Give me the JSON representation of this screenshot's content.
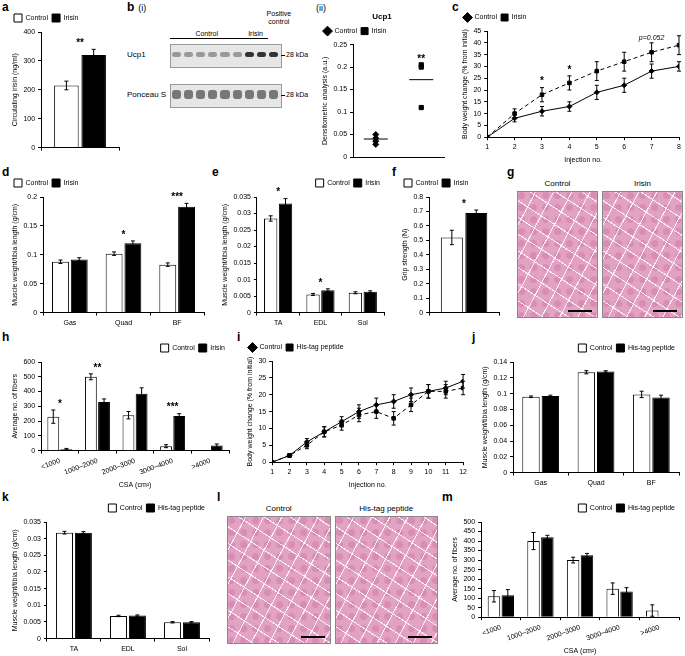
{
  "chart_data": [
    {
      "panel": "a",
      "type": "bar",
      "categories": [
        null
      ],
      "y_label": "Circulating irisin (ng/ml)",
      "ylim": [
        0,
        400
      ],
      "yticks": [
        0,
        100,
        200,
        300,
        400
      ],
      "legend": "top-left",
      "series": [
        {
          "name": "Control",
          "color": "#ffffff",
          "values": [
            215
          ],
          "errors": [
            15
          ]
        },
        {
          "name": "Irisin",
          "color": "#000000",
          "values": [
            320
          ],
          "errors": [
            20
          ]
        }
      ],
      "significance": [
        "**"
      ]
    },
    {
      "subpanel": "(ii)",
      "type": "scatter",
      "title": "Ucp1",
      "y_label": "Densitometric analysis (a.u.)",
      "ylim": [
        0,
        0.25
      ],
      "yticks": [
        0,
        0.05,
        0.1,
        0.15,
        0.2,
        0.25
      ],
      "legend": "top-left",
      "tick_labels": "y",
      "series": [
        {
          "name": "Control",
          "color": "#000000",
          "marker": "diamond",
          "values": [
            0.05,
            0.042,
            0.035,
            0.028
          ],
          "mean": 0.04
        },
        {
          "name": "Irisin",
          "color": "#000000",
          "marker": "square",
          "values": [
            0.205,
            0.2,
            0.11
          ],
          "mean": 0.172
        }
      ],
      "significance": [
        null,
        "**"
      ]
    },
    {
      "panel": "c",
      "type": "line",
      "x": [
        1,
        2,
        3,
        4,
        5,
        6,
        7,
        8
      ],
      "xlim": [
        1,
        8
      ],
      "xticks": [
        1,
        2,
        3,
        4,
        5,
        6,
        7,
        8
      ],
      "x_label": "Injection no.",
      "y_label": "Body weight change (% from initial)",
      "ylim": [
        0,
        45
      ],
      "yticks": [
        0,
        5,
        10,
        15,
        20,
        25,
        30,
        35,
        40,
        45
      ],
      "legend": "top-left",
      "series": [
        {
          "name": "Control",
          "color": "#000000",
          "marker": "diamond",
          "line_style": "solid",
          "values": [
            0,
            8,
            11,
            13,
            19,
            22,
            28,
            30
          ],
          "errors": [
            0,
            1.5,
            2,
            2,
            3,
            3,
            3,
            2
          ]
        },
        {
          "name": "Irisin",
          "color": "#000000",
          "marker": "square",
          "line_style": "dashed",
          "values": [
            0,
            10,
            18,
            23,
            28,
            32,
            36,
            39
          ],
          "errors": [
            0,
            2,
            3,
            3,
            4,
            4,
            4,
            4
          ]
        }
      ],
      "annotations": [
        {
          "x": 3,
          "text": "*"
        },
        {
          "x": 4,
          "text": "*"
        },
        {
          "x": 7,
          "text": "p=0.052"
        }
      ]
    },
    {
      "panel": "d",
      "type": "bar",
      "categories": [
        "Gas",
        "Quad",
        "BF"
      ],
      "y_label": "Muscle weight/tibia length (g/cm)",
      "ylim": [
        0,
        0.2
      ],
      "yticks": [
        0,
        0.05,
        0.1,
        0.15,
        0.2
      ],
      "legend": "top-left",
      "series": [
        {
          "name": "Control",
          "color": "#ffffff",
          "values": [
            0.088,
            0.102,
            0.083
          ],
          "errors": [
            0.003,
            0.003,
            0.003
          ]
        },
        {
          "name": "Irisin",
          "color": "#000000",
          "values": [
            0.092,
            0.12,
            0.183
          ],
          "errors": [
            0.003,
            0.004,
            0.006
          ]
        }
      ],
      "significance": [
        null,
        "*",
        "***"
      ]
    },
    {
      "panel": "e",
      "type": "bar",
      "categories": [
        "TA",
        "EDL",
        "Sol"
      ],
      "y_label": "Muscle weight/tibia length (g/cm)",
      "ylim": [
        0,
        0.035
      ],
      "yticks": [
        0,
        0.005,
        0.01,
        0.015,
        0.02,
        0.025,
        0.03,
        0.035
      ],
      "legend": "top-right",
      "series": [
        {
          "name": "Control",
          "color": "#ffffff",
          "values": [
            0.0285,
            0.0055,
            0.006
          ],
          "errors": [
            0.0008,
            0.0003,
            0.0003
          ]
        },
        {
          "name": "Irisin",
          "color": "#000000",
          "values": [
            0.033,
            0.0068,
            0.0063
          ],
          "errors": [
            0.0015,
            0.0004,
            0.0003
          ]
        }
      ],
      "significance": [
        "*",
        "*",
        null
      ]
    },
    {
      "panel": "f",
      "type": "bar",
      "categories": [
        null
      ],
      "y_label": "Grip strength (N)",
      "ylim": [
        0,
        0.8
      ],
      "yticks": [
        0,
        0.1,
        0.2,
        0.3,
        0.4,
        0.5,
        0.6,
        0.7,
        0.8
      ],
      "legend": "top-left",
      "series": [
        {
          "name": "Control",
          "color": "#ffffff",
          "values": [
            0.52
          ],
          "errors": [
            0.05
          ]
        },
        {
          "name": "Irisin",
          "color": "#000000",
          "values": [
            0.69
          ],
          "errors": [
            0.02
          ]
        }
      ],
      "significance": [
        "*"
      ]
    },
    {
      "panel": "h",
      "type": "bar",
      "categories": [
        "<1000",
        "1000–2000",
        "2000–3000",
        "3000–4000",
        ">4000"
      ],
      "x_label": "CSA (cm²)",
      "y_label": "Average no. of fibers",
      "ylim": [
        0,
        600
      ],
      "yticks": [
        0,
        100,
        200,
        300,
        400,
        500,
        600
      ],
      "legend": "top-right",
      "series": [
        {
          "name": "Control",
          "color": "#ffffff",
          "values": [
            230,
            500,
            240,
            30,
            0
          ],
          "errors": [
            45,
            20,
            25,
            10,
            0
          ]
        },
        {
          "name": "Irisin",
          "color": "#000000",
          "values": [
            10,
            330,
            385,
            235,
            35
          ],
          "errors": [
            5,
            20,
            40,
            15,
            10
          ]
        }
      ],
      "significance": [
        "*",
        "**",
        null,
        "***",
        null
      ]
    },
    {
      "panel": "i",
      "type": "line",
      "x": [
        1,
        2,
        3,
        4,
        5,
        6,
        7,
        8,
        9,
        10,
        11,
        12
      ],
      "xlim": [
        1,
        12
      ],
      "xticks": [
        1,
        2,
        3,
        4,
        5,
        6,
        7,
        8,
        9,
        10,
        11,
        12
      ],
      "x_label": "Injection no.",
      "y_label": "Body weight change (% from initial)",
      "ylim": [
        0,
        30
      ],
      "yticks": [
        0,
        5,
        10,
        15,
        20,
        25,
        30
      ],
      "legend": "top-left",
      "series": [
        {
          "name": "Control",
          "color": "#000000",
          "marker": "diamond",
          "line_style": "solid",
          "values": [
            0,
            2,
            6,
            9,
            12,
            15,
            17,
            18,
            20,
            21,
            22,
            24
          ],
          "errors": [
            0,
            0.5,
            1,
            1.5,
            1.5,
            2,
            2,
            2,
            2,
            2,
            2,
            2
          ]
        },
        {
          "name": "His-tag peptide",
          "color": "#000000",
          "marker": "square",
          "line_style": "dashed",
          "values": [
            0,
            2,
            5,
            9,
            11,
            14,
            15,
            13,
            17,
            21,
            21,
            22
          ],
          "errors": [
            0,
            0.5,
            1,
            1.5,
            1.5,
            2,
            2,
            2,
            2,
            2,
            2,
            2
          ]
        }
      ]
    },
    {
      "panel": "j",
      "type": "bar",
      "categories": [
        "Gas",
        "Quad",
        "BF"
      ],
      "y_label": "Muscle weight/tibia length (g/cm)",
      "ylim": [
        0,
        0.14
      ],
      "yticks": [
        0,
        0.02,
        0.04,
        0.06,
        0.08,
        0.1,
        0.12,
        0.14
      ],
      "legend": "top-right",
      "series": [
        {
          "name": "Control",
          "color": "#ffffff",
          "values": [
            0.096,
            0.127,
            0.099
          ],
          "errors": [
            0.001,
            0.002,
            0.004
          ]
        },
        {
          "name": "His-tag peptide",
          "color": "#000000",
          "values": [
            0.097,
            0.128,
            0.095
          ],
          "errors": [
            0.001,
            0.001,
            0.003
          ]
        }
      ]
    },
    {
      "panel": "k",
      "type": "bar",
      "categories": [
        "TA",
        "EDL",
        "Sol"
      ],
      "y_label": "Muscle weight/tibia length (g/cm)",
      "ylim": [
        0,
        0.035
      ],
      "yticks": [
        0,
        0.005,
        0.01,
        0.015,
        0.02,
        0.025,
        0.03,
        0.035
      ],
      "legend": "top-right",
      "series": [
        {
          "name": "Control",
          "color": "#ffffff",
          "values": [
            0.0318,
            0.0068,
            0.0049
          ],
          "errors": [
            0.0004,
            0.0002,
            0.0002
          ]
        },
        {
          "name": "His-tag peptide",
          "color": "#000000",
          "values": [
            0.0318,
            0.0069,
            0.0049
          ],
          "errors": [
            0.0003,
            0.0002,
            0.0002
          ]
        }
      ]
    },
    {
      "panel": "m",
      "type": "bar",
      "categories": [
        "<1000",
        "1000–2000",
        "2000–3000",
        "3000–4000",
        ">4000"
      ],
      "x_label": "CSA (cm²)",
      "y_label": "Average no. of fibers",
      "ylim": [
        0,
        500
      ],
      "yticks": [
        0,
        50,
        100,
        150,
        200,
        250,
        300,
        350,
        400,
        450,
        500
      ],
      "legend": "top-right",
      "series": [
        {
          "name": "Control",
          "color": "#ffffff",
          "values": [
            110,
            400,
            300,
            150,
            35
          ],
          "errors": [
            30,
            45,
            15,
            30,
            30
          ]
        },
        {
          "name": "His-tag peptide",
          "color": "#000000",
          "values": [
            115,
            420,
            325,
            135,
            0
          ],
          "errors": [
            30,
            10,
            10,
            20,
            0
          ]
        }
      ]
    }
  ],
  "images": [
    {
      "panel": "b",
      "subpanel": "(i)",
      "type": "blot",
      "lanes": [
        {
          "label": "Control",
          "count": 6
        },
        {
          "label": "Irisin",
          "count": 2
        },
        {
          "label": "Positive control",
          "count": 1
        }
      ],
      "bands": [
        "Ucp1",
        "Ponceau S"
      ],
      "markers": [
        "28 kDa",
        "28 kDa"
      ]
    },
    {
      "panel": "g",
      "type": "histology",
      "labels": [
        "Control",
        "Irisin"
      ]
    },
    {
      "panel": "l",
      "type": "histology",
      "labels": [
        "Control",
        "His-tag peptide"
      ]
    }
  ]
}
